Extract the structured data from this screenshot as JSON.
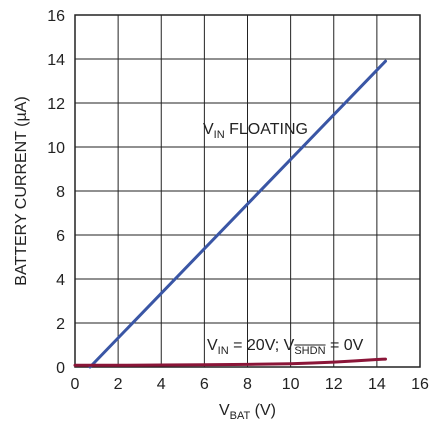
{
  "chart_data": {
    "type": "line",
    "xlabel": {
      "main": "V",
      "sub": "BAT",
      "suffix": " (V)"
    },
    "ylabel": "BATTERY CURRENT (µA)",
    "xlim": [
      0,
      16
    ],
    "ylim": [
      0,
      16
    ],
    "xticks": [
      "0",
      "2",
      "4",
      "6",
      "8",
      "10",
      "12",
      "14",
      "16"
    ],
    "yticks": [
      "0",
      "2",
      "4",
      "6",
      "8",
      "10",
      "12",
      "14",
      "16"
    ],
    "grid": true,
    "series": [
      {
        "name_parts": {
          "v": "V",
          "sub": "IN",
          "rest": " FLOATING"
        },
        "color": "#3a56a5",
        "x": [
          0.7,
          14.4
        ],
        "y": [
          0,
          13.9
        ]
      },
      {
        "name_parts": {
          "v": "V",
          "sub": "IN",
          "mid": " = 20V; V",
          "sub2": "SHDN",
          "rest": " = 0V"
        },
        "color": "#8b1538",
        "x": [
          0,
          2,
          4,
          6,
          8,
          10,
          11,
          12,
          13,
          14,
          14.4
        ],
        "y": [
          0.08,
          0.08,
          0.09,
          0.1,
          0.12,
          0.15,
          0.18,
          0.22,
          0.28,
          0.34,
          0.36
        ]
      }
    ]
  }
}
